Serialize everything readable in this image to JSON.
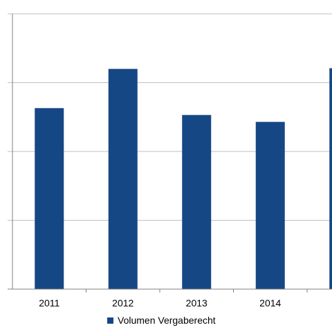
{
  "chart_data": {
    "type": "bar",
    "categories": [
      "2011",
      "2012",
      "2013",
      "2014",
      ""
    ],
    "series": [
      {
        "name": "Volumen Vergaberecht",
        "values": [
          2.63,
          3.2,
          2.53,
          2.43,
          3.21
        ]
      }
    ],
    "ylim": [
      0,
      4
    ],
    "grid": true,
    "legend": "bottom",
    "colors": {
      "bar": "#164785",
      "grid": "#bfbfbf",
      "axis": "#808080"
    }
  }
}
